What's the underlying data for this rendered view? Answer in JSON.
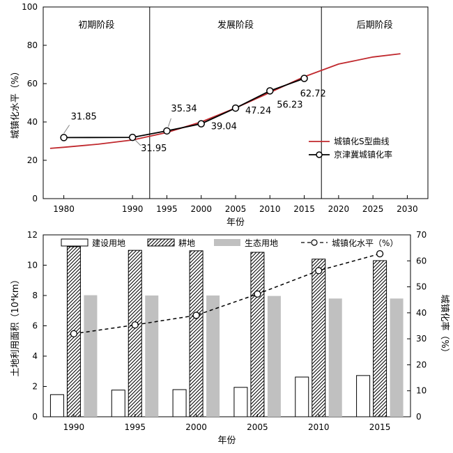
{
  "chart_data": [
    {
      "type": "line",
      "xlabel": "年份",
      "ylabel": "城镇化水平（%）",
      "xlim": [
        1977,
        2033
      ],
      "ylim": [
        0,
        100
      ],
      "x_ticks": [
        1980,
        1990,
        1995,
        2000,
        2005,
        2010,
        2015,
        2020,
        2025,
        2030
      ],
      "y_ticks": [
        0,
        20,
        40,
        60,
        80,
        100
      ],
      "grid": false,
      "legend_position": "lower-right",
      "stages": [
        {
          "label": "初期阶段",
          "from": 1977,
          "to": 1992.5
        },
        {
          "label": "发展阶段",
          "from": 1992.5,
          "to": 2017.5
        },
        {
          "label": "后期阶段",
          "from": 2017.5,
          "to": 2033
        }
      ],
      "series": [
        {
          "name": "城镇化S型曲线",
          "color": "#c0282d",
          "style": "solid",
          "markers": "none",
          "x": [
            1978,
            1980,
            1985,
            1990,
            1995,
            2000,
            2005,
            2010,
            2015,
            2020,
            2025,
            2029
          ],
          "y": [
            26.2,
            26.8,
            28.4,
            30.6,
            34.5,
            40.0,
            47.3,
            55.4,
            63.6,
            70.2,
            73.9,
            75.6
          ]
        },
        {
          "name": "京津冀城镇化率",
          "color": "#000000",
          "style": "solid",
          "markers": "open-circle",
          "x": [
            1980,
            1990,
            1995,
            2000,
            2005,
            2010,
            2015
          ],
          "y": [
            31.85,
            31.95,
            35.34,
            39.04,
            47.24,
            56.23,
            62.72
          ],
          "data_labels": [
            "31.85",
            "31.95",
            "35.34",
            "39.04",
            "47.24",
            "56.23",
            "62.72"
          ]
        }
      ]
    },
    {
      "type": "bar",
      "xlabel": "年份",
      "ylabel": "土地利用面积（10⁴km）",
      "y2label": "城镇化率（%）",
      "categories": [
        "1990",
        "1995",
        "2000",
        "2005",
        "2010",
        "2015"
      ],
      "ylim": [
        0,
        12
      ],
      "y_ticks": [
        0,
        2,
        4,
        6,
        8,
        10,
        12
      ],
      "y2lim": [
        0,
        70
      ],
      "y2_ticks": [
        0,
        10,
        20,
        30,
        40,
        50,
        60,
        70
      ],
      "grid": false,
      "legend_position": "top",
      "series": [
        {
          "name": "建设用地",
          "fill": "white-outlined",
          "values": [
            1.46,
            1.76,
            1.79,
            1.94,
            2.62,
            2.72
          ]
        },
        {
          "name": "耕地",
          "fill": "hatched",
          "values": [
            11.22,
            10.98,
            10.95,
            10.85,
            10.4,
            10.3
          ]
        },
        {
          "name": "生态用地",
          "fill": "#c0c0c0",
          "values": [
            8.02,
            8.0,
            8.0,
            7.97,
            7.8,
            7.8
          ]
        },
        {
          "name": "城镇化水平（%）",
          "type": "line",
          "axis": "right",
          "style": "dashed",
          "markers": "open-circle",
          "values": [
            31.95,
            35.34,
            39.04,
            47.24,
            56.23,
            62.72
          ]
        }
      ]
    }
  ]
}
